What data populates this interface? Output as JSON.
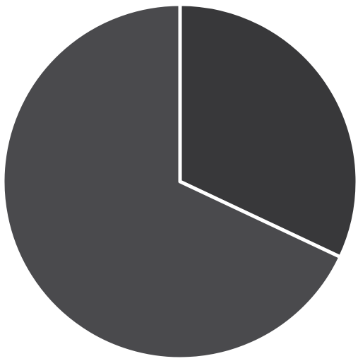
{
  "chart_data": {
    "type": "pie",
    "values": [
      32,
      68
    ],
    "colors": [
      "#38383a",
      "#4a4a4d"
    ]
  }
}
